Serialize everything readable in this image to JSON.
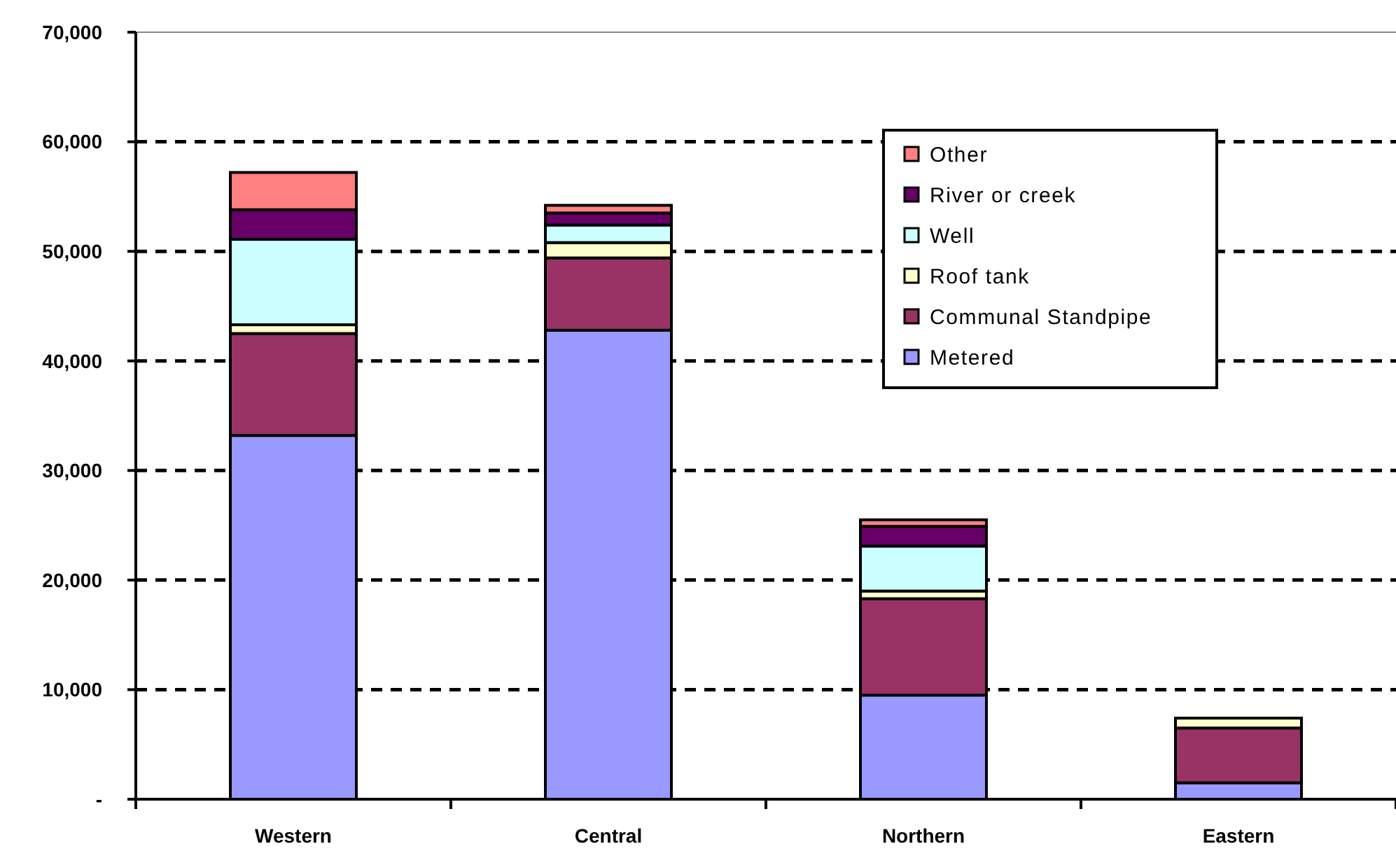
{
  "chart_data": {
    "type": "bar",
    "stacked": true,
    "categories": [
      "Western",
      "Central",
      "Northern",
      "Eastern"
    ],
    "series": [
      {
        "name": "Metered",
        "color": "#9999ff",
        "values": [
          33200,
          42800,
          9500,
          1500
        ]
      },
      {
        "name": "Communal Standpipe",
        "color": "#993366",
        "values": [
          9300,
          6600,
          8800,
          5000
        ]
      },
      {
        "name": "Roof tank",
        "color": "#ffffcc",
        "values": [
          800,
          1400,
          700,
          900
        ]
      },
      {
        "name": "Well",
        "color": "#ccffff",
        "values": [
          7800,
          1600,
          4100,
          null
        ]
      },
      {
        "name": "River or creek",
        "color": "#660066",
        "values": [
          2700,
          1100,
          1800,
          null
        ]
      },
      {
        "name": "Other",
        "color": "#ff8080",
        "values": [
          3400,
          700,
          600,
          null
        ]
      }
    ],
    "ylim": [
      0,
      70000
    ],
    "yticks": [
      {
        "value": 0,
        "label": "-"
      },
      {
        "value": 10000,
        "label": "10,000"
      },
      {
        "value": 20000,
        "label": "20,000"
      },
      {
        "value": 30000,
        "label": "30,000"
      },
      {
        "value": 40000,
        "label": "40,000"
      },
      {
        "value": 50000,
        "label": "50,000"
      },
      {
        "value": 60000,
        "label": "60,000"
      },
      {
        "value": 70000,
        "label": "70,000"
      }
    ],
    "grid": "y",
    "legend": "top right"
  }
}
